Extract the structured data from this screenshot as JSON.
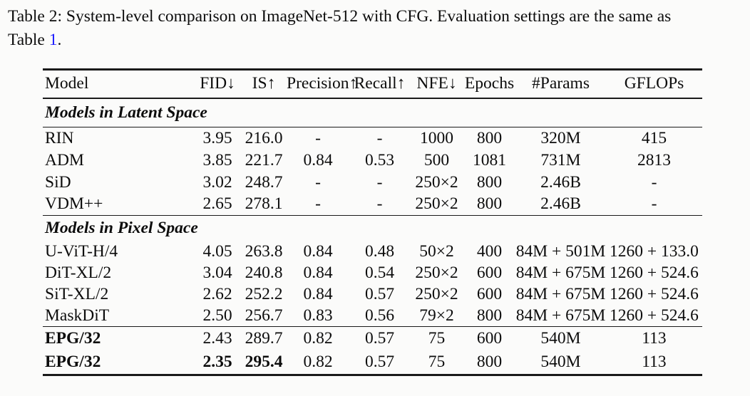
{
  "caption": {
    "line1": "Table 2: System-level comparison on ImageNet-512 with CFG. Evaluation settings are the same as",
    "line2_prefix": "Table ",
    "line2_link": "1",
    "line2_suffix": ".",
    "link_color": "#1a1aff"
  },
  "table": {
    "columns": [
      "Model",
      "FID↓",
      "IS↑",
      "Precision↑",
      "Recall↑",
      "NFE↓",
      "Epochs",
      "#Params",
      "GFLOPs"
    ],
    "sections": [
      {
        "title": "Models in Latent Space",
        "rows": [
          {
            "cells": [
              "RIN",
              "3.95",
              "216.0",
              "-",
              "-",
              "1000",
              "800",
              "320M",
              "415"
            ]
          },
          {
            "cells": [
              "ADM",
              "3.85",
              "221.7",
              "0.84",
              "0.53",
              "500",
              "1081",
              "731M",
              "2813"
            ]
          },
          {
            "cells": [
              "SiD",
              "3.02",
              "248.7",
              "-",
              "-",
              "250×2",
              "800",
              "2.46B",
              "-"
            ]
          },
          {
            "cells": [
              "VDM++",
              "2.65",
              "278.1",
              "-",
              "-",
              "250×2",
              "800",
              "2.46B",
              "-"
            ]
          }
        ]
      },
      {
        "title": "Models in Pixel Space",
        "rows": [
          {
            "cells": [
              "U-ViT-H/4",
              "4.05",
              "263.8",
              "0.84",
              "0.48",
              "50×2",
              "400",
              "84M + 501M",
              "1260 + 133.0"
            ]
          },
          {
            "cells": [
              "DiT-XL/2",
              "3.04",
              "240.8",
              "0.84",
              "0.54",
              "250×2",
              "600",
              "84M + 675M",
              "1260 + 524.6"
            ]
          },
          {
            "cells": [
              "SiT-XL/2",
              "2.62",
              "252.2",
              "0.84",
              "0.57",
              "250×2",
              "600",
              "84M + 675M",
              "1260 + 524.6"
            ]
          },
          {
            "cells": [
              "MaskDiT",
              "2.50",
              "256.7",
              "0.83",
              "0.56",
              "79×2",
              "800",
              "84M + 675M",
              "1260 + 524.6"
            ]
          }
        ]
      },
      {
        "rows": [
          {
            "cells": [
              "EPG/32",
              "2.43",
              "289.7",
              "0.82",
              "0.57",
              "75",
              "600",
              "540M",
              "113"
            ]
          },
          {
            "cells": [
              "EPG/32",
              "2.35",
              "295.4",
              "0.82",
              "0.57",
              "75",
              "800",
              "540M",
              "113"
            ]
          }
        ]
      }
    ]
  }
}
